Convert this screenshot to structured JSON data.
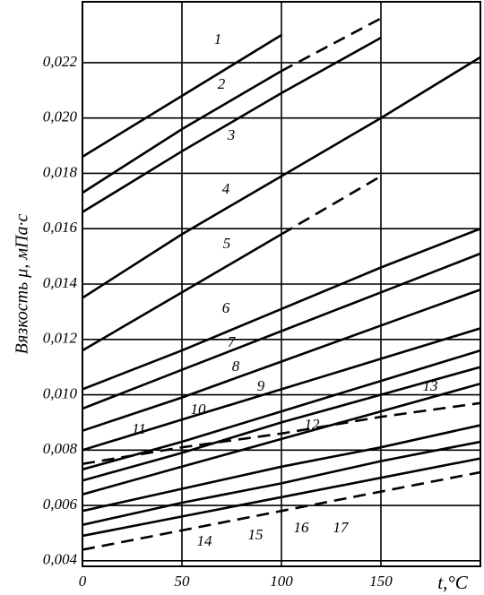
{
  "chart_data": {
    "type": "line",
    "y_label": "Вязкость μ, мПа·с",
    "x_label": "t,°C",
    "x": [
      0,
      50,
      100,
      150,
      200
    ],
    "xlim": [
      0,
      200
    ],
    "ylim": [
      0.0038,
      0.0242
    ],
    "xticks": [
      0,
      50,
      100,
      150
    ],
    "yticks": [
      {
        "value": 0.004,
        "label": "0,004"
      },
      {
        "value": 0.006,
        "label": "0,006"
      },
      {
        "value": 0.008,
        "label": "0,008"
      },
      {
        "value": 0.01,
        "label": "0,010"
      },
      {
        "value": 0.012,
        "label": "0,012"
      },
      {
        "value": 0.014,
        "label": "0,014"
      },
      {
        "value": 0.016,
        "label": "0,016"
      },
      {
        "value": 0.018,
        "label": "0,018"
      },
      {
        "value": 0.02,
        "label": "0,020"
      },
      {
        "value": 0.022,
        "label": "0,022"
      }
    ],
    "grid": true,
    "series": [
      {
        "name": "1",
        "color": "#000",
        "values": [
          0.0186,
          0.0208,
          0.023,
          null,
          null
        ]
      },
      {
        "name": "2",
        "color": "#000",
        "values": [
          0.0173,
          0.0196,
          0.0217,
          null,
          null
        ]
      },
      {
        "name": "3",
        "color": "#000",
        "values": [
          0.0166,
          0.0188,
          0.0209,
          0.0229,
          null
        ]
      },
      {
        "name": "4",
        "color": "#000",
        "values": [
          0.0135,
          0.0158,
          0.0179,
          0.02,
          0.0222
        ]
      },
      {
        "name": "5",
        "color": "#000",
        "values": [
          0.0116,
          0.0137,
          0.0158,
          null,
          null
        ]
      },
      {
        "name": "6",
        "color": "#000",
        "values": [
          0.0102,
          0.0116,
          0.0131,
          0.0146,
          0.016
        ]
      },
      {
        "name": "7",
        "color": "#000",
        "values": [
          0.0095,
          0.0109,
          0.0123,
          0.0137,
          0.0151
        ]
      },
      {
        "name": "8",
        "color": "#000",
        "values": [
          0.0087,
          0.0099,
          0.0112,
          0.0125,
          0.0138
        ]
      },
      {
        "name": "9",
        "color": "#000",
        "values": [
          0.008,
          0.0091,
          0.0102,
          0.0113,
          0.0124
        ]
      },
      {
        "name": "10",
        "color": "#000",
        "values": [
          0.0073,
          0.0083,
          0.0094,
          0.0105,
          0.0116
        ]
      },
      {
        "name": "11",
        "color": "#000",
        "dashed": true,
        "values": [
          0.0075,
          0.0081,
          0.0086,
          0.0092,
          0.0097
        ]
      },
      {
        "name": "12",
        "color": "#000",
        "values": [
          0.0069,
          0.0079,
          0.009,
          0.01,
          0.011
        ]
      },
      {
        "name": "13",
        "color": "#000",
        "values": [
          0.0064,
          0.0074,
          0.0084,
          0.0094,
          0.0104
        ]
      },
      {
        "name": "14",
        "color": "#000",
        "values": [
          0.0058,
          0.0066,
          0.0074,
          0.0081,
          0.0089
        ]
      },
      {
        "name": "15",
        "color": "#000",
        "values": [
          0.0053,
          0.0061,
          0.0068,
          0.0076,
          0.0083
        ]
      },
      {
        "name": "16",
        "color": "#000",
        "values": [
          0.0049,
          0.0056,
          0.0063,
          0.007,
          0.0077
        ]
      },
      {
        "name": "17",
        "color": "#000",
        "dashed": true,
        "values": [
          0.0044,
          0.0051,
          0.0058,
          0.0065,
          0.0072
        ]
      },
      {
        "color": "#000",
        "dashed": true,
        "values": [
          null,
          null,
          0.0217,
          0.0236,
          null
        ]
      },
      {
        "color": "#000",
        "dashed": true,
        "values": [
          null,
          null,
          0.0158,
          0.0179,
          null
        ]
      }
    ]
  }
}
